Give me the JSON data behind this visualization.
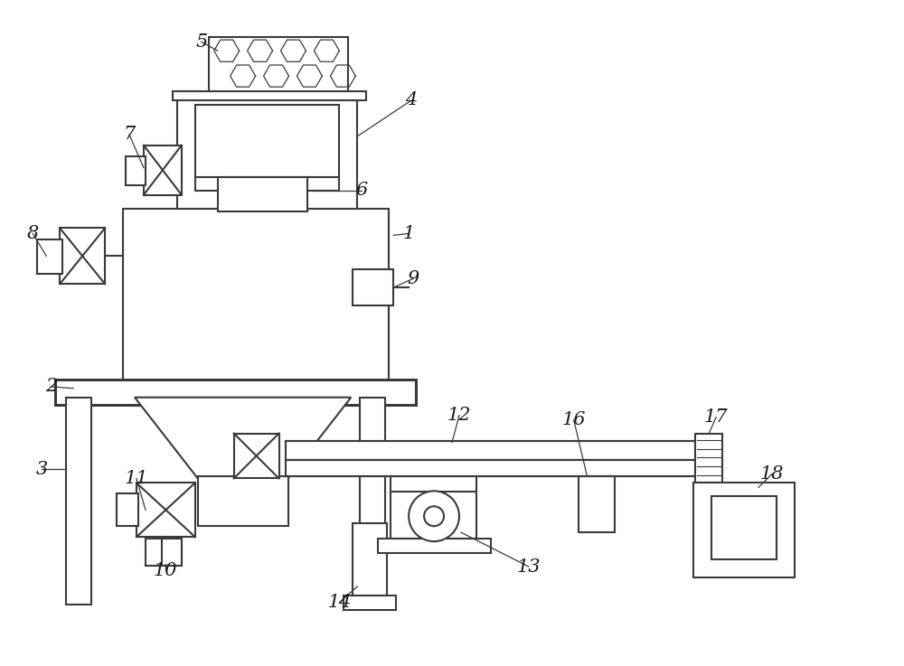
{
  "bg_color": "#ffffff",
  "line_color": "#3a3a3a",
  "lw": 1.5,
  "lw_thick": 2.2,
  "fig_width": 10.0,
  "fig_height": 7.37
}
